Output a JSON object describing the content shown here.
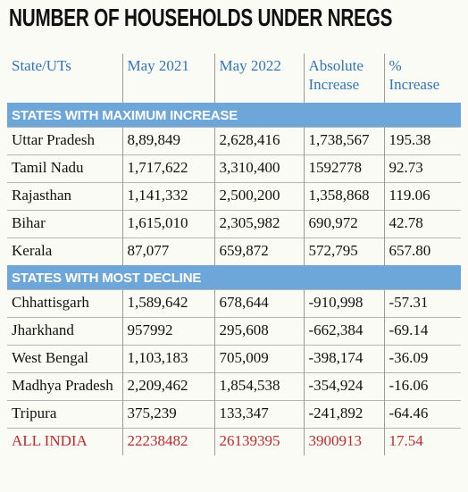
{
  "title": "NUMBER OF HOUSEHOLDS UNDER NREGS",
  "table": {
    "columns": [
      "State/UTs",
      "May 2021",
      "May 2022",
      "Absolute Increase",
      "% Increase"
    ],
    "sections": [
      {
        "label": "STATES WITH MAXIMUM INCREASE",
        "rows": [
          [
            "Uttar Pradesh",
            "8,89,849",
            "2,628,416",
            "1,738,567",
            "195.38"
          ],
          [
            "Tamil Nadu",
            "1,717,622",
            "3,310,400",
            "1592778",
            "92.73"
          ],
          [
            "Rajasthan",
            "1,141,332",
            "2,500,200",
            "1,358,868",
            "119.06"
          ],
          [
            "Bihar",
            "1,615,010",
            "2,305,982",
            "690,972",
            "42.78"
          ],
          [
            "Kerala",
            "87,077",
            "659,872",
            "572,795",
            "657.80"
          ]
        ]
      },
      {
        "label": "STATES WITH MOST DECLINE",
        "rows": [
          [
            "Chhattisgarh",
            "1,589,642",
            "678,644",
            "-910,998",
            "-57.31"
          ],
          [
            "Jharkhand",
            "957992",
            "295,608",
            "-662,384",
            "-69.14"
          ],
          [
            "West Bengal",
            "1,103,183",
            "705,009",
            "-398,174",
            "-36.09"
          ],
          [
            "Madhya Pradesh",
            "2,209,462",
            "1,854,538",
            "-354,924",
            "-16.06"
          ],
          [
            "Tripura",
            "375,239",
            "133,347",
            "-241,892",
            "-64.46"
          ]
        ]
      }
    ],
    "total": [
      "ALL INDIA",
      "22238482",
      "26139395",
      "3900913",
      "17.54"
    ]
  }
}
